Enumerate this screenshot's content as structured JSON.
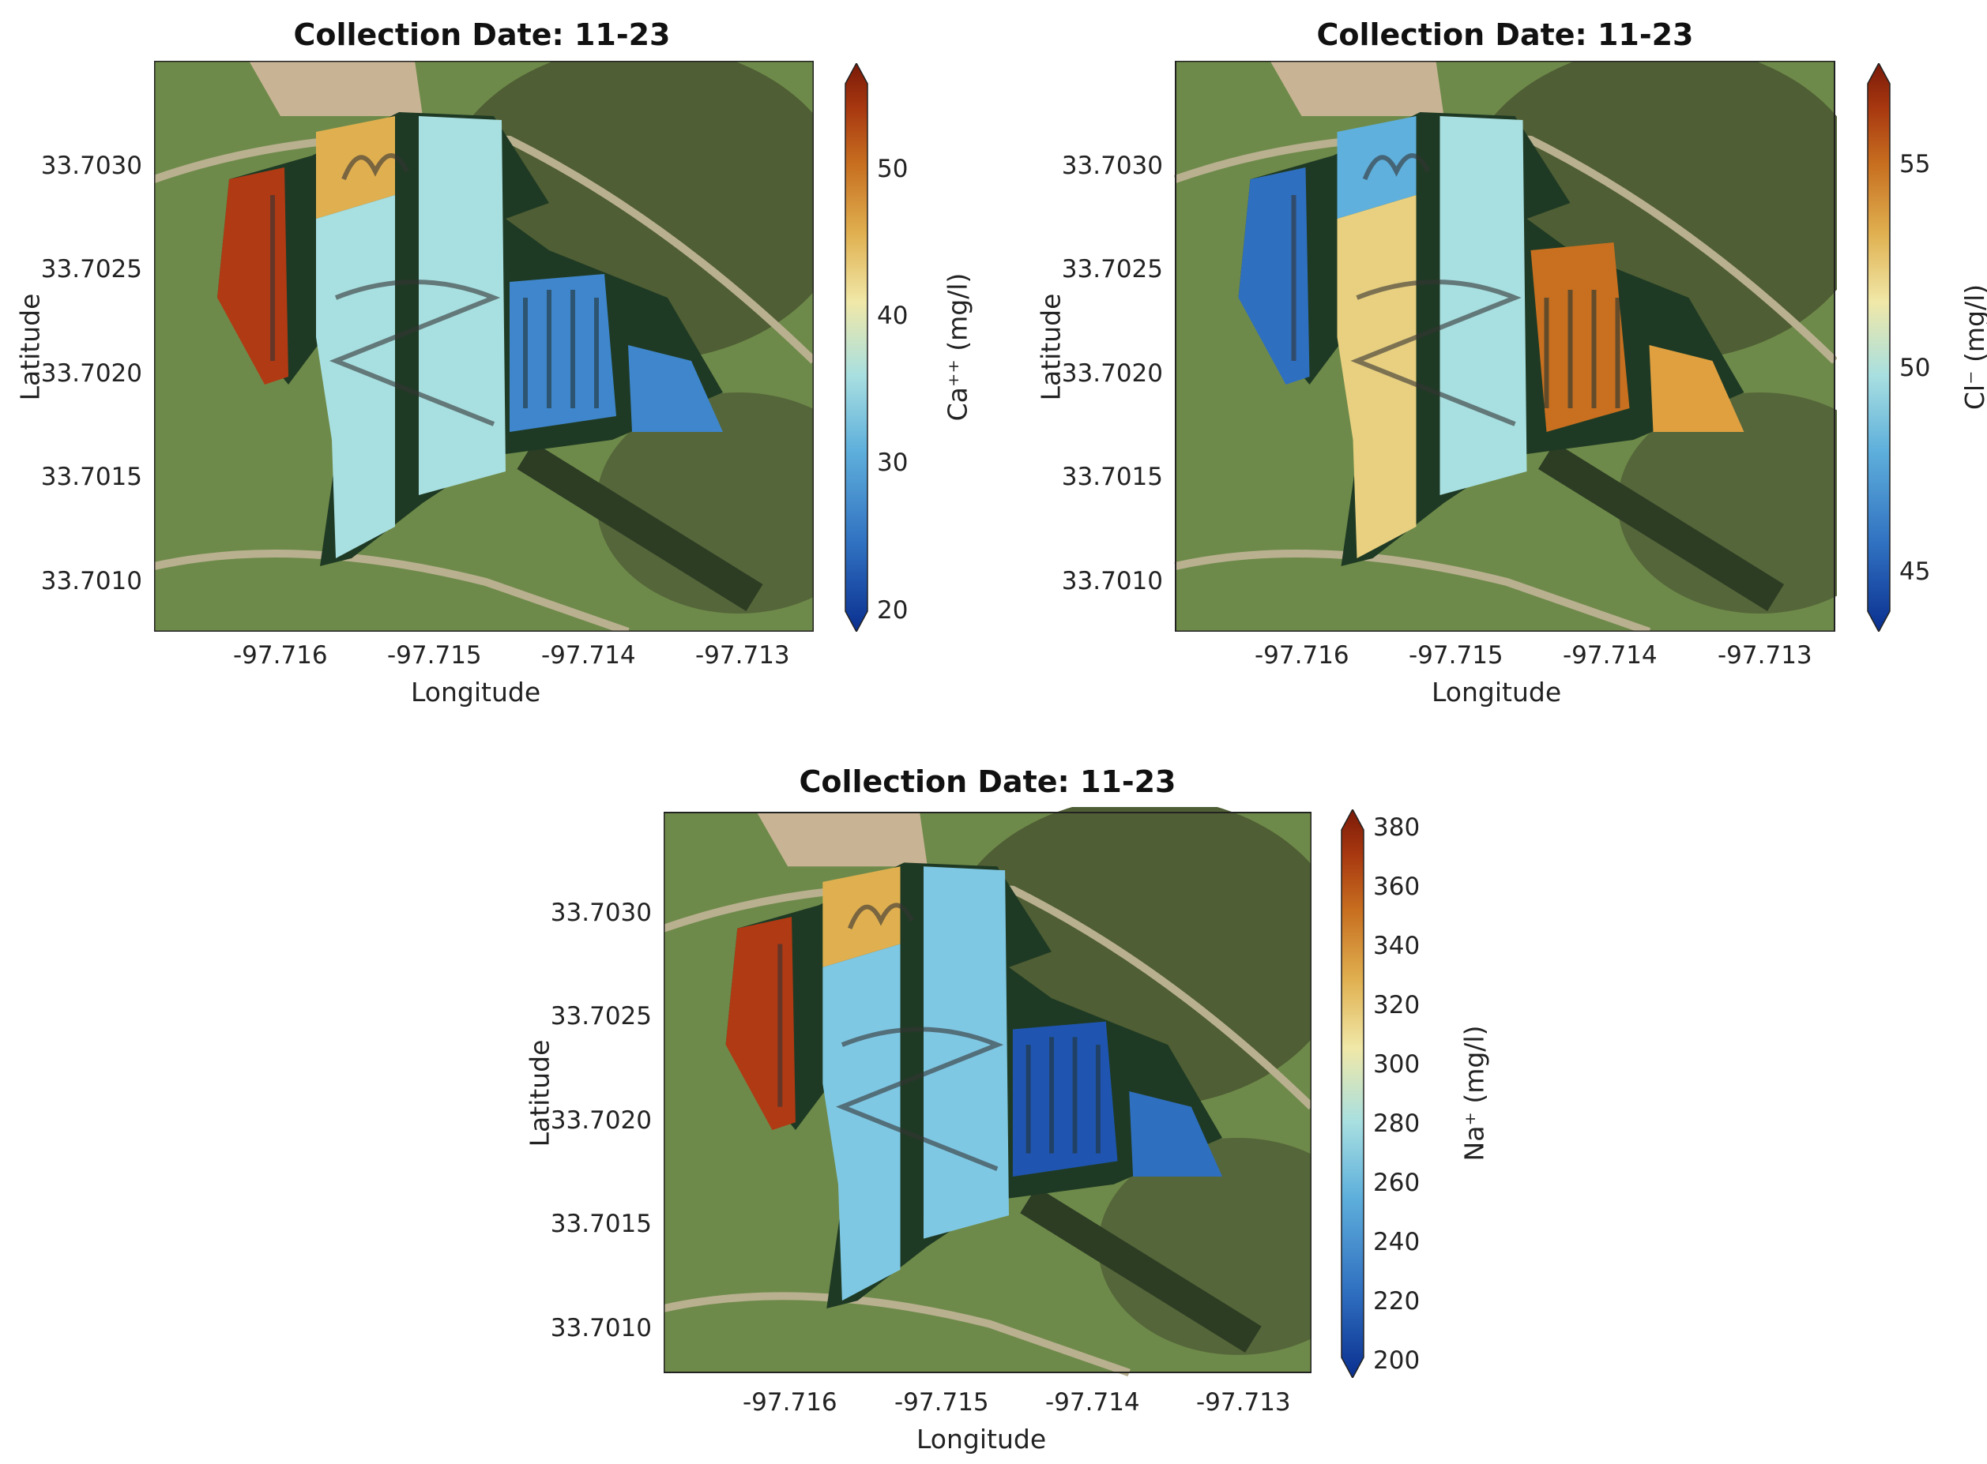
{
  "panels": [
    {
      "title": "Collection Date: 11-23",
      "xlabel": "Longitude",
      "ylabel": "Latitude",
      "xticks": [
        "-97.716",
        "-97.715",
        "-97.714",
        "-97.713"
      ],
      "yticks": [
        "33.7030",
        "33.7025",
        "33.7020",
        "33.7015",
        "33.7010"
      ],
      "colorbar_label": "Ca⁺⁺ (mg/l)",
      "colorbar_ticks": [
        "50",
        "40",
        "30",
        "20"
      ]
    },
    {
      "title": "Collection Date: 11-23",
      "xlabel": "Longitude",
      "ylabel": "Latitude",
      "xticks": [
        "-97.716",
        "-97.715",
        "-97.714",
        "-97.713"
      ],
      "yticks": [
        "33.7030",
        "33.7025",
        "33.7020",
        "33.7015",
        "33.7010"
      ],
      "colorbar_label": "Cl⁻ (mg/l)",
      "colorbar_ticks": [
        "55",
        "50",
        "45"
      ]
    },
    {
      "title": "Collection Date: 11-23",
      "xlabel": "Longitude",
      "ylabel": "Latitude",
      "xticks": [
        "-97.716",
        "-97.715",
        "-97.714",
        "-97.713"
      ],
      "yticks": [
        "33.7030",
        "33.7025",
        "33.7020",
        "33.7015",
        "33.7010"
      ],
      "colorbar_label": "Na⁺ (mg/l)",
      "colorbar_ticks": [
        "380",
        "360",
        "340",
        "320",
        "300",
        "280",
        "260",
        "240",
        "220",
        "200"
      ]
    }
  ],
  "colors": {
    "colormap": [
      "#0a2f8f",
      "#2f6fc0",
      "#5fb0dc",
      "#a8dfe0",
      "#f0e8a8",
      "#e0b050",
      "#c87020",
      "#a83810",
      "#7a1a08"
    ],
    "grass": "#6e8a4a",
    "forest": "#4a5a30",
    "dirt": "#c8b494"
  }
}
